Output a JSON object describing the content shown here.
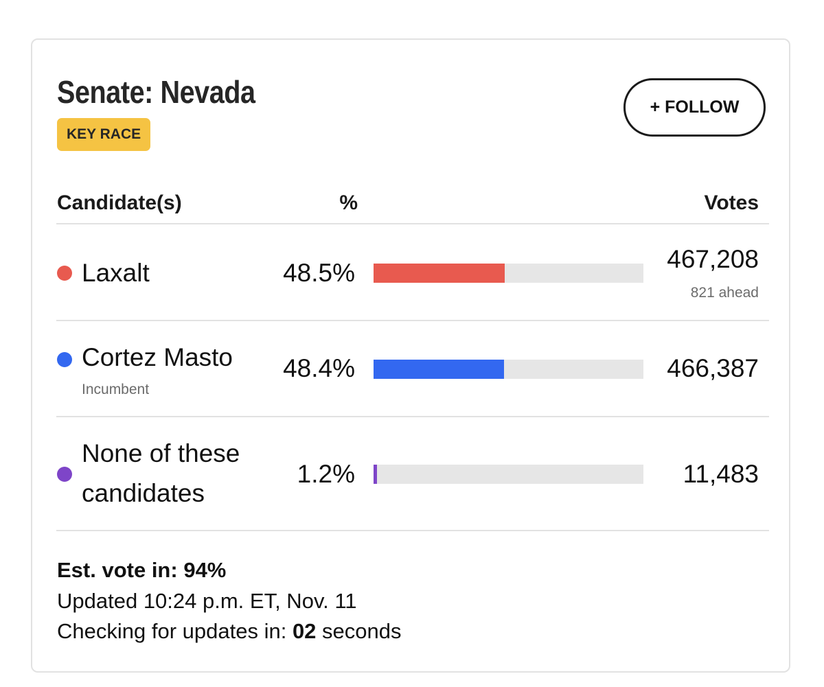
{
  "race": {
    "title": "Senate: Nevada",
    "badge": "KEY RACE",
    "follow_label": "+ FOLLOW"
  },
  "table": {
    "headers": {
      "candidate": "Candidate(s)",
      "percent": "%",
      "votes": "Votes"
    },
    "candidates": [
      {
        "name": "Laxalt",
        "percent": "48.5%",
        "percent_value": 48.5,
        "votes": "467,208",
        "note": "821 ahead",
        "color": "#e85a4f"
      },
      {
        "name": "Cortez Masto",
        "subtitle": "Incumbent",
        "percent": "48.4%",
        "percent_value": 48.4,
        "votes": "466,387",
        "color": "#3368f0"
      },
      {
        "name_line1": "None of these",
        "name_line2": "candidates",
        "percent": "1.2%",
        "percent_value": 1.2,
        "votes": "11,483",
        "color": "#7e45c8"
      }
    ]
  },
  "footer": {
    "est_vote_label": "Est. vote in:",
    "est_vote_value": "94%",
    "updated": "Updated 10:24 p.m. ET, Nov. 11",
    "checking_prefix": "Checking for updates in:",
    "checking_value": "02",
    "checking_suffix": "seconds"
  }
}
